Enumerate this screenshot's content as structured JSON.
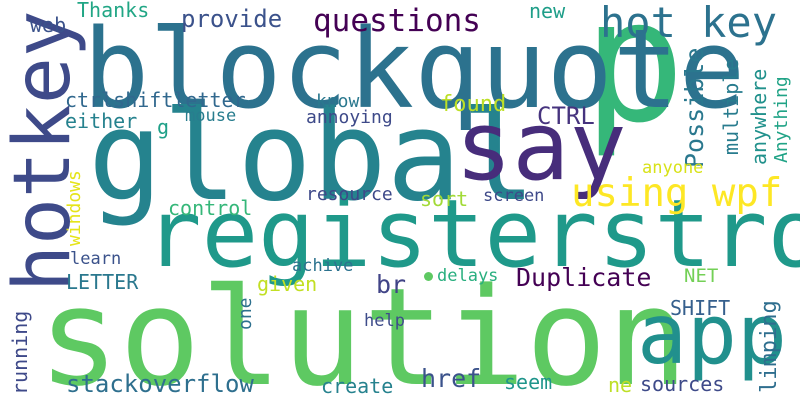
{
  "words": [
    {
      "text": "p",
      "color": "#35b779",
      "vertical": false
    },
    {
      "text": "blockquote",
      "color": "#2c728e",
      "vertical": false
    },
    {
      "text": "global",
      "color": "#25838e",
      "vertical": false
    },
    {
      "text": "hotkey",
      "color": "#3e4a89",
      "vertical": true
    },
    {
      "text": "say",
      "color": "#472d7b",
      "vertical": false
    },
    {
      "text": "hot key",
      "color": "#2c728e",
      "vertical": false
    },
    {
      "text": "registerstrong",
      "color": "#1f998a",
      "vertical": false
    },
    {
      "text": "solution",
      "color": "#5ec962",
      "vertical": false
    },
    {
      "text": "app",
      "color": "#21908d",
      "vertical": false
    },
    {
      "text": "using wpf",
      "color": "#fde725",
      "vertical": false
    },
    {
      "text": "questions",
      "color": "#440154",
      "vertical": false
    },
    {
      "text": "provide",
      "color": "#3b528b",
      "vertical": false
    },
    {
      "text": "Thanks",
      "color": "#21a685",
      "vertical": false
    },
    {
      "text": "web",
      "color": "#3b528b",
      "vertical": false
    },
    {
      "text": "new",
      "color": "#1f9e89",
      "vertical": false
    },
    {
      "text": "ctrlshiftletter",
      "color": "#31688e",
      "vertical": false
    },
    {
      "text": "know",
      "color": "#2a788e",
      "vertical": false
    },
    {
      "text": "found",
      "color": "#bddf26",
      "vertical": false
    },
    {
      "text": "Possible",
      "color": "#2a788e",
      "vertical": true
    },
    {
      "text": "multiple",
      "color": "#287c8e",
      "vertical": true
    },
    {
      "text": "anywhere",
      "color": "#21918c",
      "vertical": true
    },
    {
      "text": "Anything",
      "color": "#20a386",
      "vertical": true
    },
    {
      "text": "either",
      "color": "#26828e",
      "vertical": false
    },
    {
      "text": "g",
      "color": "#1fa088",
      "vertical": false
    },
    {
      "text": "mouse",
      "color": "#287d8e",
      "vertical": false
    },
    {
      "text": "annoying",
      "color": "#3e4a89",
      "vertical": false
    },
    {
      "text": "CTRL",
      "color": "#46337e",
      "vertical": false
    },
    {
      "text": "anyone",
      "color": "#d8e219",
      "vertical": false
    },
    {
      "text": "windows",
      "color": "#e5e419",
      "vertical": true
    },
    {
      "text": "resource",
      "color": "#3e4989",
      "vertical": false
    },
    {
      "text": "sort",
      "color": "#a2da37",
      "vertical": false
    },
    {
      "text": "screen",
      "color": "#3e4989",
      "vertical": false
    },
    {
      "text": "control",
      "color": "#35b779",
      "vertical": false
    },
    {
      "text": "learn",
      "color": "#3b528b",
      "vertical": false
    },
    {
      "text": "LETTER",
      "color": "#2a788e",
      "vertical": false
    },
    {
      "text": "achive",
      "color": "#2c728e",
      "vertical": false
    },
    {
      "text": "delays",
      "color": "#29af7f",
      "vertical": false
    },
    {
      "text": "Duplicate",
      "color": "#440154",
      "vertical": false
    },
    {
      "text": "NET",
      "color": "#73d056",
      "vertical": false
    },
    {
      "text": "given",
      "color": "#c2df23",
      "vertical": false
    },
    {
      "text": "br",
      "color": "#414487",
      "vertical": false
    },
    {
      "text": "one",
      "color": "#2d708e",
      "vertical": true
    },
    {
      "text": "SHIFT",
      "color": "#355f8d",
      "vertical": false
    },
    {
      "text": "help",
      "color": "#3e4c8a",
      "vertical": false
    },
    {
      "text": "running",
      "color": "#3e4989",
      "vertical": true
    },
    {
      "text": "limping",
      "color": "#2e6e8e",
      "vertical": true
    },
    {
      "text": "stackoverflow",
      "color": "#2e6f8e",
      "vertical": false
    },
    {
      "text": "create",
      "color": "#26828e",
      "vertical": false
    },
    {
      "text": "href",
      "color": "#3b528b",
      "vertical": false
    },
    {
      "text": "seem",
      "color": "#1f958b",
      "vertical": false
    },
    {
      "text": "ne",
      "color": "#bddf26",
      "vertical": false
    },
    {
      "text": "sources",
      "color": "#3e4a89",
      "vertical": false
    }
  ]
}
